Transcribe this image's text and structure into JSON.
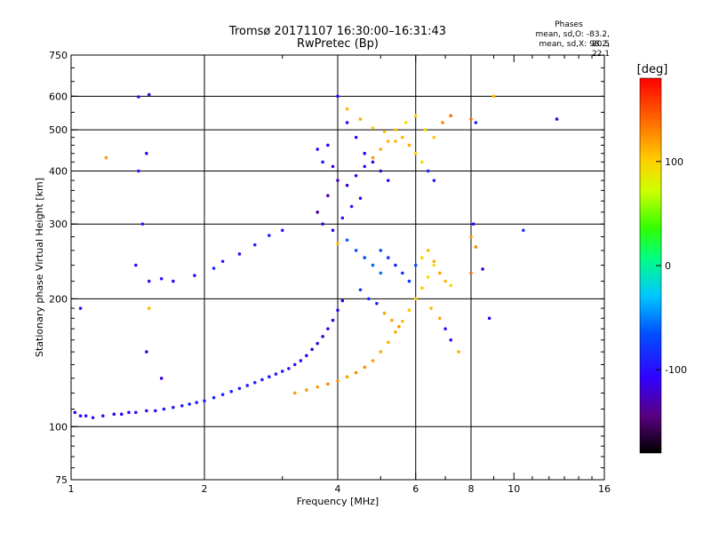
{
  "header": {
    "title_line1": "Tromsø 20171107 16:30:00–16:31:43",
    "title_line2": "RwPretec (Bp)",
    "phases_title": "Phases",
    "phases_o": "mean, sd,O: -83.2, 20.5",
    "phases_x": "mean, sd,X: 98.2, 22.1"
  },
  "colorbar": {
    "unit": "[deg]",
    "ticks": [
      {
        "label": "100",
        "value": 100
      },
      {
        "label": "0",
        "value": 0
      },
      {
        "label": "-100",
        "value": -100
      }
    ],
    "range": [
      -180,
      180
    ]
  },
  "chart_data": {
    "type": "scatter",
    "xlabel": "Frequency [MHz]",
    "ylabel": "Stationary phase Virtual Height [km]",
    "x_scale": "log",
    "y_scale": "log",
    "xlim": [
      1,
      16
    ],
    "ylim": [
      75,
      750
    ],
    "x_ticks": [
      {
        "label": "1",
        "value": 1
      },
      {
        "label": "2",
        "value": 2
      },
      {
        "label": "4",
        "value": 4
      },
      {
        "label": "6",
        "value": 6
      },
      {
        "label": "8",
        "value": 8
      },
      {
        "label": "10",
        "value": 10
      },
      {
        "label": "16",
        "value": 16
      }
    ],
    "x_grid": [
      2,
      4,
      6,
      8
    ],
    "y_ticks": [
      {
        "label": "750",
        "value": 750
      },
      {
        "label": "600",
        "value": 600
      },
      {
        "label": "500",
        "value": 500
      },
      {
        "label": "400",
        "value": 400
      },
      {
        "label": "300",
        "value": 300
      },
      {
        "label": "200",
        "value": 200
      },
      {
        "label": "100",
        "value": 100
      },
      {
        "label": "75",
        "value": 75
      }
    ],
    "y_grid": [
      600,
      500,
      400,
      300,
      200,
      100
    ],
    "series": [
      {
        "points": [
          [
            1.02,
            108,
            -110
          ],
          [
            1.05,
            106,
            -105
          ],
          [
            1.08,
            106,
            -100
          ],
          [
            1.12,
            105,
            -100
          ],
          [
            1.18,
            106,
            -105
          ],
          [
            1.25,
            107,
            -110
          ],
          [
            1.3,
            107,
            -110
          ],
          [
            1.35,
            108,
            -108
          ],
          [
            1.4,
            108,
            -105
          ],
          [
            1.48,
            109,
            -100
          ],
          [
            1.55,
            109,
            -102
          ],
          [
            1.62,
            110,
            -95
          ],
          [
            1.7,
            111,
            -95
          ],
          [
            1.78,
            112,
            -92
          ],
          [
            1.85,
            113,
            -90
          ],
          [
            1.92,
            114,
            -92
          ],
          [
            2.0,
            115,
            -88
          ],
          [
            2.1,
            117,
            -86
          ],
          [
            2.2,
            119,
            -90
          ],
          [
            2.3,
            121,
            -88
          ],
          [
            2.4,
            123,
            -92
          ],
          [
            2.5,
            125,
            -95
          ],
          [
            2.6,
            127,
            -92
          ],
          [
            2.7,
            129,
            -95
          ],
          [
            2.8,
            131,
            -92
          ],
          [
            2.9,
            133,
            -95
          ],
          [
            3.0,
            135,
            -92
          ],
          [
            3.1,
            137,
            -95
          ],
          [
            3.2,
            140,
            -100
          ],
          [
            3.3,
            143,
            -105
          ],
          [
            3.4,
            147,
            -110
          ],
          [
            3.5,
            152,
            -115
          ],
          [
            3.6,
            157,
            -118
          ],
          [
            3.7,
            163,
            -120
          ],
          [
            3.8,
            170,
            -118
          ],
          [
            3.9,
            178,
            -115
          ],
          [
            4.0,
            188,
            -112
          ],
          [
            4.1,
            198,
            -115
          ],
          [
            1.4,
            240,
            -100
          ],
          [
            1.5,
            220,
            -95
          ],
          [
            1.6,
            223,
            -100
          ],
          [
            1.7,
            220,
            -98
          ],
          [
            1.9,
            227,
            -95
          ],
          [
            2.1,
            236,
            -90
          ],
          [
            2.2,
            245,
            -95
          ],
          [
            2.4,
            255,
            -95
          ],
          [
            2.6,
            268,
            -90
          ],
          [
            2.8,
            282,
            -92
          ],
          [
            3.0,
            290,
            -95
          ],
          [
            1.5,
            605,
            -120
          ],
          [
            1.42,
            598,
            -110
          ],
          [
            1.48,
            440,
            -100
          ],
          [
            1.42,
            400,
            -95
          ],
          [
            1.2,
            430,
            120
          ],
          [
            1.05,
            190,
            -100
          ],
          [
            1.45,
            300,
            -90
          ],
          [
            1.5,
            190,
            110
          ],
          [
            1.48,
            150,
            -115
          ],
          [
            1.6,
            130,
            -120
          ],
          [
            3.2,
            120,
            120
          ],
          [
            3.4,
            122,
            125
          ],
          [
            3.6,
            124,
            120
          ],
          [
            3.8,
            126,
            130
          ],
          [
            4.0,
            128,
            125
          ],
          [
            4.2,
            131,
            120
          ],
          [
            4.4,
            134,
            130
          ],
          [
            4.6,
            138,
            125
          ],
          [
            4.8,
            143,
            120
          ],
          [
            5.0,
            150,
            115
          ],
          [
            5.2,
            158,
            110
          ],
          [
            5.4,
            167,
            115
          ],
          [
            5.6,
            177,
            110
          ],
          [
            5.8,
            188,
            105
          ],
          [
            6.0,
            200,
            100
          ],
          [
            6.2,
            212,
            105
          ],
          [
            6.4,
            225,
            100
          ],
          [
            6.6,
            240,
            95
          ],
          [
            4.0,
            600,
            -110
          ],
          [
            4.2,
            520,
            -105
          ],
          [
            4.4,
            480,
            -100
          ],
          [
            4.6,
            440,
            -110
          ],
          [
            4.8,
            420,
            -115
          ],
          [
            5.0,
            400,
            -120
          ],
          [
            5.2,
            380,
            -110
          ],
          [
            3.8,
            350,
            -130
          ],
          [
            3.6,
            320,
            -140
          ],
          [
            3.7,
            300,
            -120
          ],
          [
            3.9,
            290,
            -110
          ],
          [
            4.1,
            310,
            -100
          ],
          [
            4.3,
            330,
            -95
          ],
          [
            4.5,
            345,
            -100
          ],
          [
            3.6,
            450,
            -105
          ],
          [
            3.7,
            420,
            -100
          ],
          [
            3.8,
            460,
            -110
          ],
          [
            3.9,
            410,
            -115
          ],
          [
            4.0,
            380,
            -125
          ],
          [
            4.2,
            370,
            -120
          ],
          [
            4.4,
            390,
            -105
          ],
          [
            4.6,
            410,
            -100
          ],
          [
            4.8,
            430,
            120
          ],
          [
            5.0,
            450,
            115
          ],
          [
            5.2,
            470,
            110
          ],
          [
            5.4,
            500,
            105
          ],
          [
            5.6,
            480,
            110
          ],
          [
            5.8,
            460,
            115
          ],
          [
            6.0,
            440,
            100
          ],
          [
            6.2,
            420,
            95
          ],
          [
            6.4,
            400,
            -90
          ],
          [
            6.6,
            380,
            -95
          ],
          [
            4.2,
            560,
            110
          ],
          [
            4.5,
            530,
            115
          ],
          [
            4.8,
            505,
            100
          ],
          [
            5.1,
            495,
            105
          ],
          [
            5.4,
            470,
            110
          ],
          [
            5.7,
            520,
            95
          ],
          [
            6.0,
            540,
            100
          ],
          [
            6.3,
            500,
            90
          ],
          [
            6.6,
            480,
            105
          ],
          [
            6.9,
            520,
            130
          ],
          [
            7.2,
            540,
            140
          ],
          [
            5.0,
            260,
            -70
          ],
          [
            5.2,
            250,
            -80
          ],
          [
            5.4,
            240,
            -90
          ],
          [
            5.6,
            230,
            -85
          ],
          [
            5.8,
            220,
            -75
          ],
          [
            6.0,
            240,
            -70
          ],
          [
            6.2,
            250,
            100
          ],
          [
            6.4,
            260,
            110
          ],
          [
            6.6,
            245,
            115
          ],
          [
            6.8,
            230,
            120
          ],
          [
            7.0,
            220,
            110
          ],
          [
            7.2,
            215,
            100
          ],
          [
            4.0,
            270,
            110
          ],
          [
            4.2,
            275,
            -60
          ],
          [
            4.4,
            260,
            -65
          ],
          [
            4.6,
            250,
            -70
          ],
          [
            4.8,
            240,
            -60
          ],
          [
            5.0,
            230,
            -55
          ],
          [
            4.5,
            210,
            -80
          ],
          [
            4.7,
            200,
            -85
          ],
          [
            4.9,
            195,
            -90
          ],
          [
            5.1,
            185,
            115
          ],
          [
            5.3,
            178,
            120
          ],
          [
            5.5,
            172,
            125
          ],
          [
            6.5,
            190,
            110
          ],
          [
            6.8,
            180,
            120
          ],
          [
            7.0,
            170,
            -100
          ],
          [
            7.2,
            160,
            -95
          ],
          [
            7.5,
            150,
            115
          ],
          [
            8.0,
            230,
            140
          ],
          [
            8.2,
            265,
            130
          ],
          [
            8.0,
            280,
            125
          ],
          [
            8.1,
            300,
            -110
          ],
          [
            8.5,
            235,
            -120
          ],
          [
            8.8,
            180,
            -115
          ],
          [
            9.0,
            600,
            110
          ],
          [
            8.0,
            530,
            140
          ],
          [
            8.2,
            520,
            -90
          ],
          [
            10.5,
            290,
            -80
          ],
          [
            12.5,
            530,
            -120
          ]
        ]
      }
    ]
  }
}
